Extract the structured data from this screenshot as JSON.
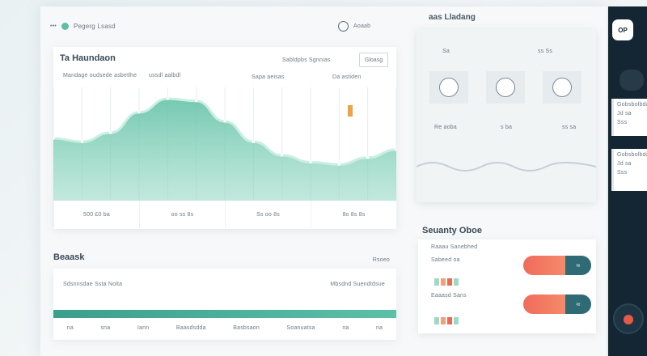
{
  "window": {
    "title": "Pegerg Lsasd",
    "account_label": "Aoaab",
    "header_right": "aas Lladang"
  },
  "chart": {
    "title": "Ta Haundaon",
    "subtitle": "Mandage oudsede asbetlhe",
    "label_b": "ussdl aalbdl",
    "label_c": "Sapa aeisas",
    "label_d": "Da astiden",
    "label_e": "Sabldpbs Sgnnias",
    "close_label": "Gloasg",
    "legend": [
      "500 £0 ba",
      "oo ss 8s",
      "Ss oo 8s",
      "8o 8s 8s"
    ],
    "accent": "#5dbfa3",
    "highlight": "#f0a045"
  },
  "chart_data": {
    "type": "area",
    "x": [
      0,
      1,
      2,
      3,
      4,
      5,
      6,
      7,
      8,
      9,
      10,
      11,
      12
    ],
    "values": [
      55,
      52,
      60,
      78,
      90,
      88,
      70,
      52,
      40,
      34,
      32,
      38,
      45
    ],
    "ylim": [
      0,
      100
    ],
    "grid": true
  },
  "preview": {
    "label": "Sa",
    "code": "ss Ss",
    "footer": [
      "Re aoba",
      "s ba",
      "ss sa"
    ]
  },
  "side_panel": {
    "chip_label": "OP",
    "card1": [
      "Gobsbolbda",
      "Jd sa",
      "Sss"
    ],
    "card2": [
      "Gobsbolbda",
      "Jd sa",
      "Sss"
    ]
  },
  "bottom": {
    "title": "Beaask",
    "sub_right": "Rsoeo",
    "row_label": "Sdsnnsdae Ssta Nolta",
    "row_right": "Mbsdnd Suendtdsue",
    "footer": [
      "na",
      "sna",
      "Iann",
      "Baasdsdda",
      "Basbsaon",
      "Soanuatsa",
      "na",
      "na"
    ]
  },
  "summary": {
    "title": "Seuanty Oboe",
    "row1": "Raaau Sanebhed",
    "row2": "Sabeed oa",
    "row3": "Eaaasd Sans",
    "pill_icon": "≈",
    "colors": [
      "#f06b5b",
      "#2e6b74"
    ]
  }
}
